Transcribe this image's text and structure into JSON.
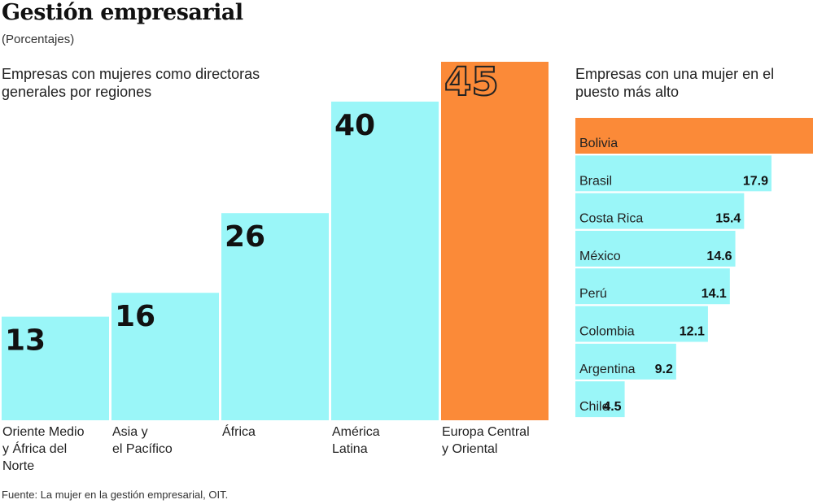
{
  "header": {
    "title": "Gestión empresarial",
    "subtitle": "(Porcentajes)"
  },
  "source": "Fuente: La mujer en la gestión empresarial, OIT.",
  "colors": {
    "bar": "#9af6f8",
    "highlight": "#fb8a38",
    "text": "#1a1a1a"
  },
  "chart_data": [
    {
      "type": "bar",
      "title": "Empresas con mujeres como directoras generales por regiones",
      "categories": [
        [
          "Oriente Medio",
          "y África del",
          "Norte"
        ],
        [
          "Asia y",
          "el Pacífico"
        ],
        [
          "África"
        ],
        [
          "América",
          "Latina"
        ],
        [
          "Europa Central",
          "y Oriental"
        ]
      ],
      "values": [
        13,
        16,
        26,
        40,
        45
      ],
      "highlight_index": 4,
      "ylim": [
        0,
        45
      ]
    },
    {
      "type": "bar",
      "orientation": "horizontal",
      "title": "Empresas con una mujer en el puesto más alto",
      "categories": [
        "Bolivia",
        "Brasil",
        "Costa Rica",
        "México",
        "Perú",
        "Colombia",
        "Argentina",
        "Chile"
      ],
      "values": [
        null,
        17.9,
        15.4,
        14.6,
        14.1,
        12.1,
        9.2,
        4.5
      ],
      "value_labels": [
        "",
        "17.9",
        "15.4",
        "14.6",
        "14.1",
        "12.1",
        "9.2",
        "4.5"
      ],
      "highlight_index": 0
    }
  ]
}
